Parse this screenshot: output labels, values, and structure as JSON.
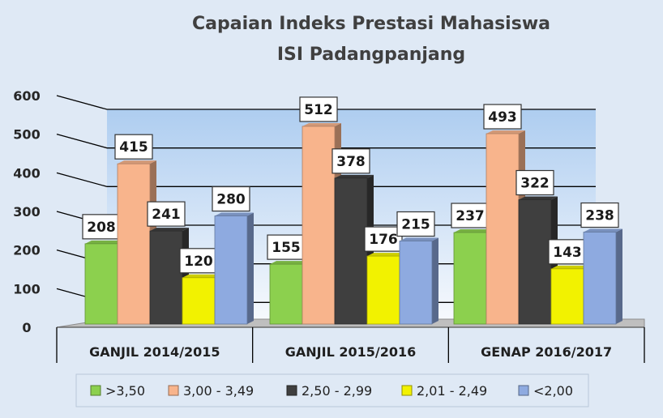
{
  "chart_data": {
    "type": "bar",
    "title": "Capaian Indeks Prestasi Mahasiswa",
    "subtitle": "ISI Padangpanjang",
    "categories": [
      "GANJIL 2014/2015",
      "GANJIL 2015/2016",
      "GENAP 2016/2017"
    ],
    "series": [
      {
        "name": ">3,50",
        "values": [
          208,
          155,
          237
        ],
        "color": "#8cd04e"
      },
      {
        "name": "3,00 - 3,49",
        "values": [
          415,
          512,
          493
        ],
        "color": "#f8b48c"
      },
      {
        "name": "2,50 - 2,99",
        "values": [
          241,
          378,
          322
        ],
        "color": "#3f3f3f"
      },
      {
        "name": "2,01 - 2,49",
        "values": [
          120,
          176,
          143
        ],
        "color": "#f2f200"
      },
      {
        "name": "<2,00",
        "values": [
          280,
          215,
          238
        ],
        "color": "#8eaae0"
      }
    ],
    "ylim": [
      0,
      600
    ],
    "yticks": [
      0,
      100,
      200,
      300,
      400,
      500,
      600
    ],
    "grid": true,
    "legend_position": "bottom",
    "xlabel": "",
    "ylabel": ""
  }
}
